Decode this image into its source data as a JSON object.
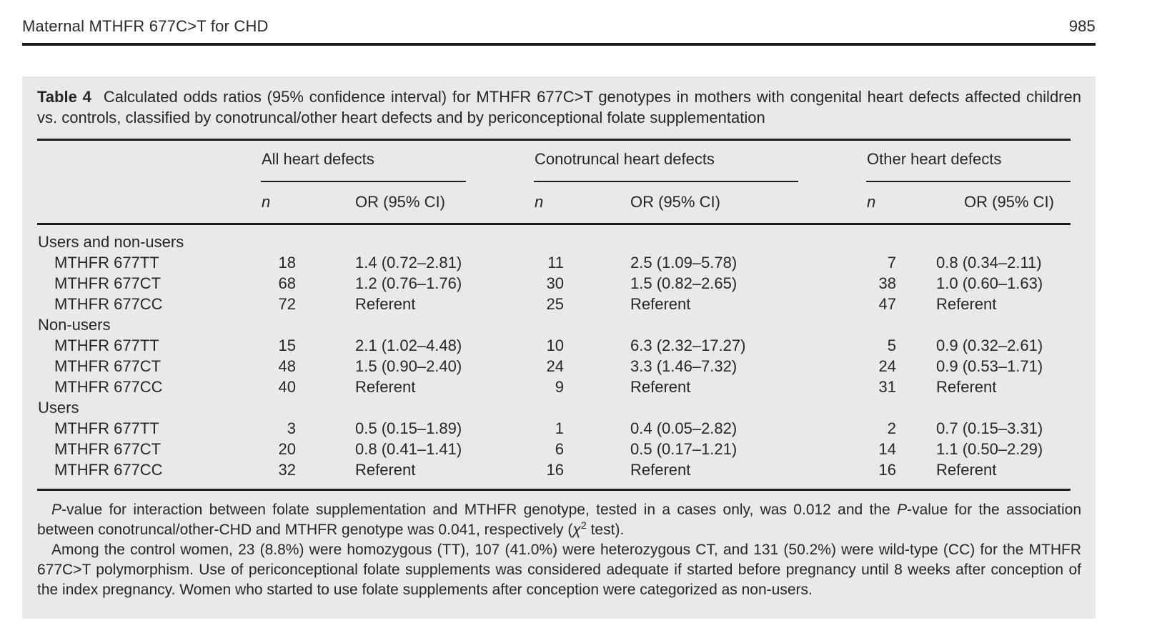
{
  "page": {
    "running_head": "Maternal MTHFR 677C>T for CHD",
    "page_number": "985"
  },
  "colors": {
    "panel_bg": "#e9e9e8",
    "text": "#262626",
    "rule": "#1d1d1f"
  },
  "table": {
    "label": "Table 4",
    "caption": "Calculated odds ratios (95% confidence interval) for MTHFR 677C>T genotypes in mothers with congenital heart defects affected children vs. controls, classified by conotruncal/other heart defects and by periconceptional folate supplementation",
    "col_groups": [
      "All heart defects",
      "Conotruncal heart defects",
      "Other heart defects"
    ],
    "subheaders": {
      "n": "n",
      "or": "OR (95% CI)"
    },
    "sections": [
      {
        "label": "Users and non-users",
        "rows": [
          {
            "label": "MTHFR 677TT",
            "n1": "18",
            "or1": "1.4 (0.72–2.81)",
            "n2": "11",
            "or2": "2.5 (1.09–5.78)",
            "n3": "7",
            "or3": "0.8 (0.34–2.11)"
          },
          {
            "label": "MTHFR 677CT",
            "n1": "68",
            "or1": "1.2 (0.76–1.76)",
            "n2": "30",
            "or2": "1.5 (0.82–2.65)",
            "n3": "38",
            "or3": "1.0 (0.60–1.63)"
          },
          {
            "label": "MTHFR 677CC",
            "n1": "72",
            "or1": "Referent",
            "n2": "25",
            "or2": "Referent",
            "n3": "47",
            "or3": "Referent"
          }
        ]
      },
      {
        "label": "Non-users",
        "rows": [
          {
            "label": "MTHFR 677TT",
            "n1": "15",
            "or1": "2.1 (1.02–4.48)",
            "n2": "10",
            "or2": "6.3 (2.32–17.27)",
            "n3": "5",
            "or3": "0.9 (0.32–2.61)"
          },
          {
            "label": "MTHFR 677CT",
            "n1": "48",
            "or1": "1.5 (0.90–2.40)",
            "n2": "24",
            "or2": "3.3 (1.46–7.32)",
            "n3": "24",
            "or3": "0.9 (0.53–1.71)"
          },
          {
            "label": "MTHFR 677CC",
            "n1": "40",
            "or1": "Referent",
            "n2": "9",
            "or2": "Referent",
            "n3": "31",
            "or3": "Referent"
          }
        ]
      },
      {
        "label": "Users",
        "rows": [
          {
            "label": "MTHFR 677TT",
            "n1": "3",
            "or1": "0.5 (0.15–1.89)",
            "n2": "1",
            "or2": "0.4 (0.05–2.82)",
            "n3": "2",
            "or3": "0.7 (0.15–3.31)"
          },
          {
            "label": "MTHFR 677CT",
            "n1": "20",
            "or1": "0.8 (0.41–1.41)",
            "n2": "6",
            "or2": "0.5 (0.17–1.21)",
            "n3": "14",
            "or3": "1.1 (0.50–2.29)"
          },
          {
            "label": "MTHFR 677CC",
            "n1": "32",
            "or1": "Referent",
            "n2": "16",
            "or2": "Referent",
            "n3": "16",
            "or3": "Referent"
          }
        ]
      }
    ],
    "footnote1": {
      "i1": "P",
      "t1": "-value for interaction between folate supplementation and MTHFR genotype, tested in a cases only, was 0.012 and the ",
      "i2": "P",
      "t2": "-value for the association between conotruncal/other-CHD and MTHFR genotype was 0.041, respectively (",
      "chi": "χ",
      "sup": "2",
      "t3": " test)."
    },
    "footnote2": "Among the control women, 23 (8.8%) were homozygous (TT), 107 (41.0%) were heterozygous CT, and 131 (50.2%) were wild-type (CC) for the MTHFR 677C>T polymorphism. Use of periconceptional folate supplements was considered adequate if started before pregnancy until 8 weeks after conception of the index pregnancy. Women who started to use folate supplements after conception were categorized as non-users."
  }
}
